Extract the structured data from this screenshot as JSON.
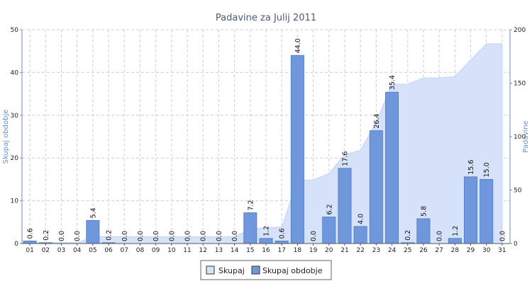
{
  "chart_data": {
    "type": "bar",
    "title": "Padavine za Julij 2011",
    "categories": [
      "01",
      "02",
      "03",
      "04",
      "05",
      "06",
      "07",
      "08",
      "09",
      "10",
      "11",
      "12",
      "13",
      "14",
      "15",
      "16",
      "17",
      "18",
      "19",
      "20",
      "21",
      "22",
      "23",
      "24",
      "25",
      "26",
      "27",
      "28",
      "29",
      "30",
      "31"
    ],
    "series": [
      {
        "name": "Skupaj obdobje",
        "kind": "bar",
        "axis": "left",
        "color": "#6f98dc",
        "values": [
          0.6,
          0.2,
          0.0,
          0.0,
          5.4,
          0.2,
          0.0,
          0.0,
          0.0,
          0.0,
          0.0,
          0.0,
          0.0,
          0.0,
          7.2,
          1.2,
          0.6,
          44.0,
          0.0,
          6.2,
          17.6,
          4.0,
          26.4,
          35.4,
          0.2,
          5.8,
          0.0,
          1.2,
          15.6,
          15.0,
          0.0
        ],
        "labels": [
          "0.6",
          "0.2",
          "0.0",
          "0.0",
          "5.4",
          "0.2",
          "0.0",
          "0.0",
          "0.0",
          "0.0",
          "0.0",
          "0.0",
          "0.0",
          "0.0",
          "7.2",
          "1.2",
          "0.6",
          "44.0",
          "0.0",
          "6.2",
          "17.6",
          "4.0",
          "26.4",
          "35.4",
          "0.2",
          "5.8",
          "0.0",
          "1.2",
          "15.6",
          "15.0",
          "0.0"
        ]
      },
      {
        "name": "Skupaj",
        "kind": "area",
        "axis": "right",
        "color": "#d6e2fa",
        "values": [
          0.6,
          0.8,
          0.8,
          0.8,
          6.2,
          6.4,
          6.4,
          6.4,
          6.4,
          6.4,
          6.4,
          6.4,
          6.4,
          6.4,
          13.6,
          14.8,
          15.4,
          59.4,
          59.4,
          65.6,
          83.2,
          87.2,
          113.6,
          149.0,
          149.2,
          155.0,
          155.0,
          156.2,
          171.8,
          186.8,
          186.8
        ]
      }
    ],
    "ylabel_left": "Skupaj obdobje",
    "ylabel_right": "Padavine",
    "ylim_left": [
      0,
      50
    ],
    "ylim_right": [
      0,
      200
    ],
    "yticks_left": [
      "0",
      "10",
      "20",
      "30",
      "40",
      "50"
    ],
    "yticks_right": [
      "0",
      "50",
      "100",
      "150",
      "200"
    ],
    "grid": true,
    "legend_position": "bottom-center",
    "legend": [
      "Skupaj",
      "Skupaj obdobje"
    ]
  }
}
